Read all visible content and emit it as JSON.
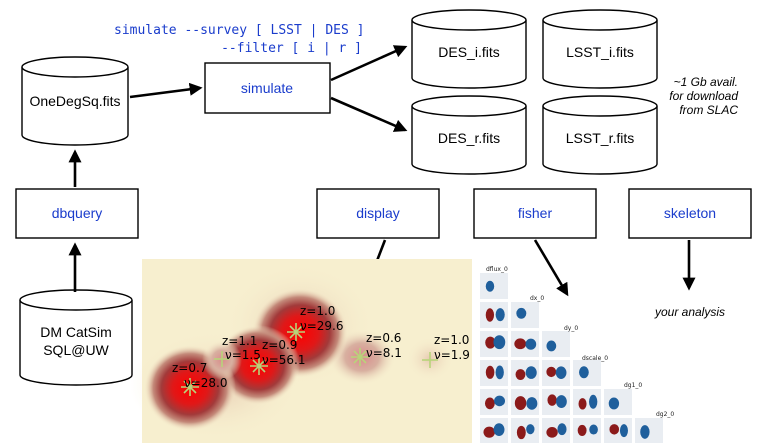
{
  "command": {
    "line1": "simulate --survey [ LSST | DES ]",
    "line2": "--filter [ i | r ]"
  },
  "databases": {
    "onedegsq": "OneDegSq.fits",
    "catsim_line1": "DM CatSim",
    "catsim_line2": "SQL@UW",
    "des_i": "DES_i.fits",
    "lsst_i": "LSST_i.fits",
    "des_r": "DES_r.fits",
    "lsst_r": "LSST_r.fits"
  },
  "processes": {
    "simulate": "simulate",
    "dbquery": "dbquery",
    "display": "display",
    "fisher": "fisher",
    "skeleton": "skeleton"
  },
  "notes": {
    "avail_line1": "~1 Gb avail.",
    "avail_line2": "for download",
    "avail_line3": "from SLAC",
    "your_analysis": "your analysis"
  },
  "display_panel": {
    "sources": [
      {
        "z": "z=0.7",
        "nu": "ν=28.0"
      },
      {
        "z": "z=1.1",
        "nu": "ν=1.5"
      },
      {
        "z": "z=0.9",
        "nu": "ν=56.1"
      },
      {
        "z": "z=1.0",
        "nu": "ν=29.6"
      },
      {
        "z": "z=0.6",
        "nu": "ν=8.1"
      },
      {
        "z": "z=1.0",
        "nu": "ν=1.9"
      }
    ]
  },
  "fisher_panel": {
    "params": [
      "dflux_0",
      "dx_0",
      "dy_0",
      "dscale_0",
      "dg1_0",
      "dg2_0"
    ]
  },
  "colors": {
    "link_text": "#1a3ccc",
    "heat_background": "#f7efcf",
    "heat_core": "#ff0000",
    "fisher_blue": "#1f5f9c",
    "fisher_red": "#8b1a1a"
  }
}
